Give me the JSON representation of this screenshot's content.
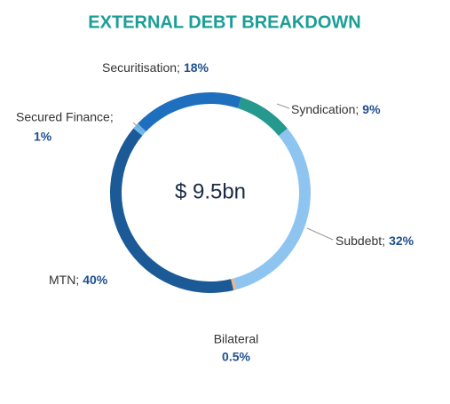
{
  "chart_data": {
    "type": "donut",
    "title": "EXTERNAL DEBT BREAKDOWN",
    "center_label": "$ 9.5bn",
    "categories": [
      "Syndication;",
      "Subdebt;",
      "Bilateral",
      "MTN;",
      "Secured Finance;",
      "Securitisation;"
    ],
    "values": [
      9,
      32,
      0.5,
      40,
      1,
      18
    ],
    "value_labels": [
      "9%",
      "32%",
      "0.5%",
      "40%",
      "1%",
      "18%"
    ],
    "colors": [
      "#26998f",
      "#8ec4f0",
      "#f0b08a",
      "#1b5a96",
      "#6ab8f0",
      "#1f6fbf"
    ]
  }
}
